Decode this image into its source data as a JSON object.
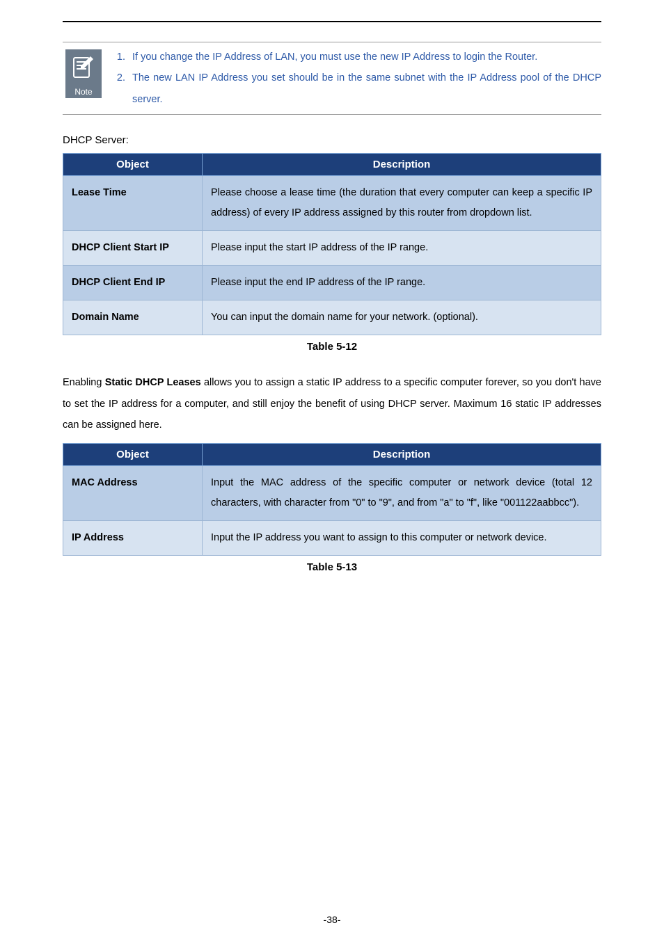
{
  "colors": {
    "header_bg": "#1d3f7a",
    "header_border": "#7aa4d6",
    "row_alt_bg": "#b9cde6",
    "row_bg": "#d7e3f1",
    "cell_border": "#9db6d4",
    "note_blue": "#2e5aa8",
    "icon_bg": "#6b7a8a"
  },
  "note": {
    "caption": "Note",
    "items": [
      "If you change the IP Address of LAN, you must use the new IP Address to login the Router.",
      "The new LAN IP Address you set should be in the same subnet with the IP Address pool of the DHCP server."
    ]
  },
  "dhcp_label": "DHCP Server:",
  "table1": {
    "headers": [
      "Object",
      "Description"
    ],
    "rows": [
      {
        "k": "Lease Time",
        "v": "Please choose a lease time (the duration that every computer can keep a specific IP address) of every IP address assigned by this router from dropdown list."
      },
      {
        "k": "DHCP Client Start IP",
        "v": "Please input the start IP address of the IP range."
      },
      {
        "k": "DHCP Client End IP",
        "v": "Please input the end IP address of the IP range."
      },
      {
        "k": "Domain Name",
        "v": "You can input the domain name for your network. (optional)."
      }
    ],
    "caption": "Table 5-12"
  },
  "paragraph": "Enabling Static DHCP Leases allows you to assign a static IP address to a specific computer forever, so you don't have to set the IP address for a computer, and still enjoy the benefit of using DHCP server. Maximum 16 static IP addresses can be assigned here.",
  "bold_phrase": "Static DHCP Leases",
  "table2": {
    "headers": [
      "Object",
      "Description"
    ],
    "rows": [
      {
        "k": "MAC Address",
        "v": "Input the MAC address of the specific computer or network device (total 12 characters, with character from \"0\" to \"9\", and from \"a\" to \"f\", like \"001122aabbcc\")."
      },
      {
        "k": "IP Address",
        "v": "Input the IP address you want to assign to this computer or network device."
      }
    ],
    "caption": "Table 5-13"
  },
  "page_number": "-38-"
}
